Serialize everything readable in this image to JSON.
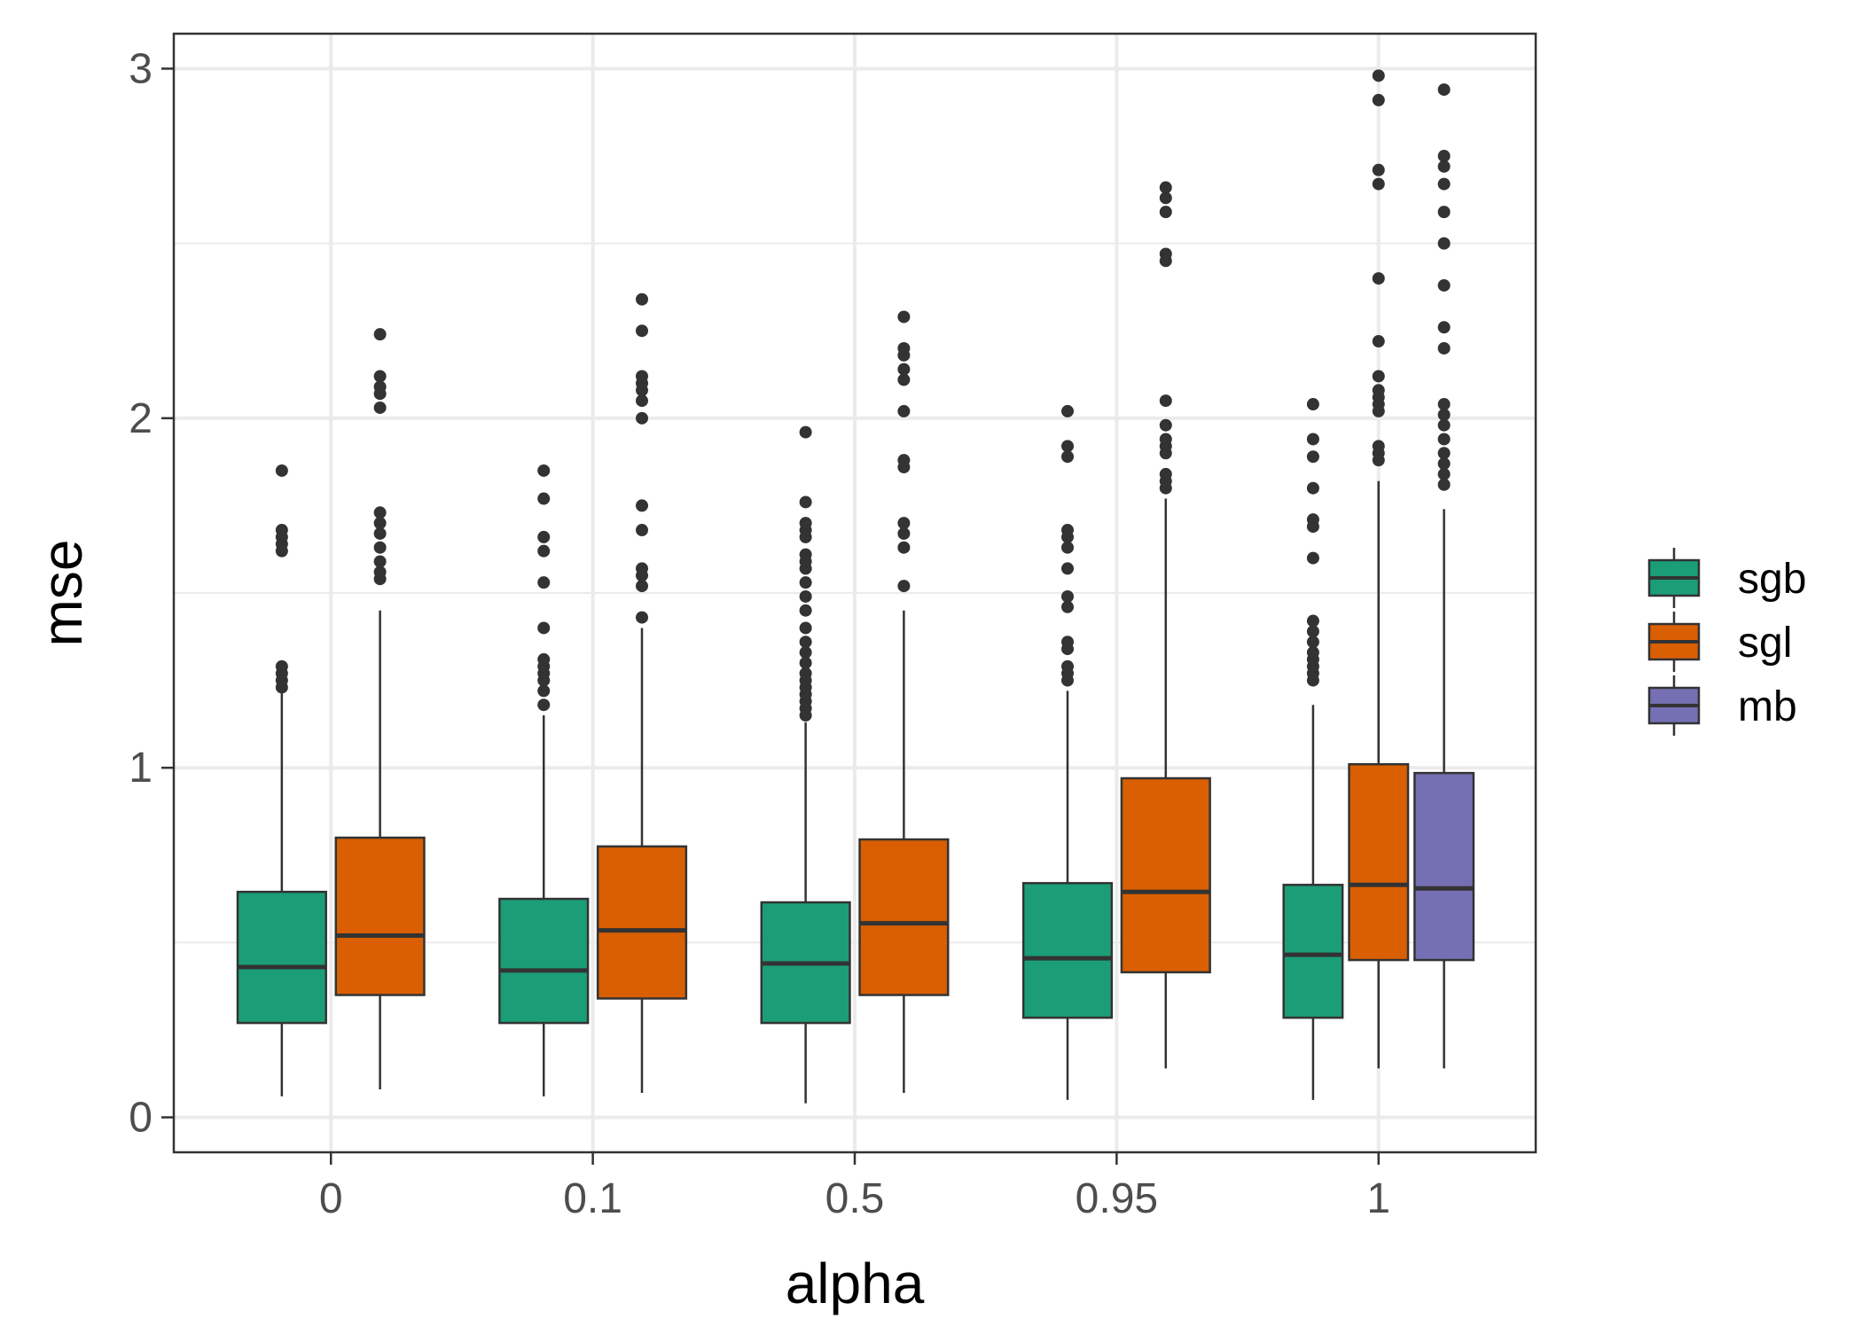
{
  "chart_data": {
    "type": "boxplot",
    "title": "",
    "xlabel": "alpha",
    "ylabel": "mse",
    "categories": [
      "0",
      "0.1",
      "0.5",
      "0.95",
      "1"
    ],
    "ylim": [
      -0.1,
      3.1
    ],
    "yticks": [
      0,
      1,
      2,
      3
    ],
    "yticklabels": [
      "0",
      "1",
      "2",
      "3"
    ],
    "grid": true,
    "legend_position": "right",
    "series": [
      {
        "name": "sgb",
        "color": "#1b9e77",
        "boxes": [
          {
            "category": "0",
            "min": 0.06,
            "q1": 0.27,
            "median": 0.43,
            "q3": 0.645,
            "max": 1.22,
            "outliers": [
              1.23,
              1.25,
              1.27,
              1.29,
              1.62,
              1.64,
              1.66,
              1.68,
              1.85
            ]
          },
          {
            "category": "0.1",
            "min": 0.06,
            "q1": 0.27,
            "median": 0.42,
            "q3": 0.625,
            "max": 1.15,
            "outliers": [
              1.18,
              1.22,
              1.25,
              1.27,
              1.29,
              1.31,
              1.4,
              1.53,
              1.62,
              1.66,
              1.77,
              1.85
            ]
          },
          {
            "category": "0.5",
            "min": 0.04,
            "q1": 0.27,
            "median": 0.44,
            "q3": 0.615,
            "max": 1.13,
            "outliers": [
              1.15,
              1.17,
              1.19,
              1.21,
              1.23,
              1.25,
              1.27,
              1.3,
              1.33,
              1.36,
              1.4,
              1.45,
              1.49,
              1.53,
              1.57,
              1.59,
              1.61,
              1.66,
              1.68,
              1.7,
              1.76,
              1.96
            ]
          },
          {
            "category": "0.95",
            "min": 0.05,
            "q1": 0.285,
            "median": 0.455,
            "q3": 0.67,
            "max": 1.22,
            "outliers": [
              1.25,
              1.27,
              1.29,
              1.34,
              1.36,
              1.46,
              1.49,
              1.57,
              1.63,
              1.66,
              1.68,
              1.89,
              1.92,
              2.02
            ]
          },
          {
            "category": "1",
            "min": 0.05,
            "q1": 0.285,
            "median": 0.465,
            "q3": 0.665,
            "max": 1.18,
            "outliers": [
              1.25,
              1.27,
              1.29,
              1.31,
              1.33,
              1.36,
              1.39,
              1.42,
              1.6,
              1.69,
              1.71,
              1.8,
              1.89,
              1.94,
              2.04
            ]
          }
        ]
      },
      {
        "name": "sgl",
        "color": "#d95f02",
        "boxes": [
          {
            "category": "0",
            "min": 0.08,
            "q1": 0.35,
            "median": 0.52,
            "q3": 0.8,
            "max": 1.45,
            "outliers": [
              1.54,
              1.56,
              1.59,
              1.63,
              1.67,
              1.7,
              1.73,
              2.03,
              2.07,
              2.09,
              2.12,
              2.24
            ]
          },
          {
            "category": "0.1",
            "min": 0.07,
            "q1": 0.34,
            "median": 0.535,
            "q3": 0.775,
            "max": 1.4,
            "outliers": [
              1.43,
              1.52,
              1.55,
              1.57,
              1.68,
              1.75,
              2.0,
              2.05,
              2.08,
              2.1,
              2.12,
              2.25,
              2.34
            ]
          },
          {
            "category": "0.5",
            "min": 0.07,
            "q1": 0.35,
            "median": 0.555,
            "q3": 0.795,
            "max": 1.45,
            "outliers": [
              1.52,
              1.63,
              1.67,
              1.7,
              1.86,
              1.88,
              2.02,
              2.11,
              2.14,
              2.18,
              2.2,
              2.29
            ]
          },
          {
            "category": "0.95",
            "min": 0.14,
            "q1": 0.415,
            "median": 0.645,
            "q3": 0.97,
            "max": 1.77,
            "outliers": [
              1.8,
              1.82,
              1.84,
              1.9,
              1.92,
              1.94,
              1.98,
              2.05,
              2.45,
              2.47,
              2.59,
              2.63,
              2.66
            ]
          },
          {
            "category": "1",
            "min": 0.14,
            "q1": 0.45,
            "median": 0.665,
            "q3": 1.01,
            "max": 1.82,
            "outliers": [
              1.88,
              1.9,
              1.92,
              2.02,
              2.04,
              2.06,
              2.08,
              2.12,
              2.22,
              2.4,
              2.67,
              2.71,
              2.91,
              2.98
            ]
          }
        ]
      },
      {
        "name": "mb",
        "color": "#7570b3",
        "boxes": [
          {
            "category": "1",
            "min": 0.14,
            "q1": 0.45,
            "median": 0.655,
            "q3": 0.985,
            "max": 1.74,
            "outliers": [
              1.81,
              1.84,
              1.87,
              1.9,
              1.94,
              1.98,
              2.01,
              2.04,
              2.2,
              2.26,
              2.38,
              2.5,
              2.59,
              2.67,
              2.72,
              2.75,
              2.94
            ]
          }
        ]
      }
    ]
  }
}
